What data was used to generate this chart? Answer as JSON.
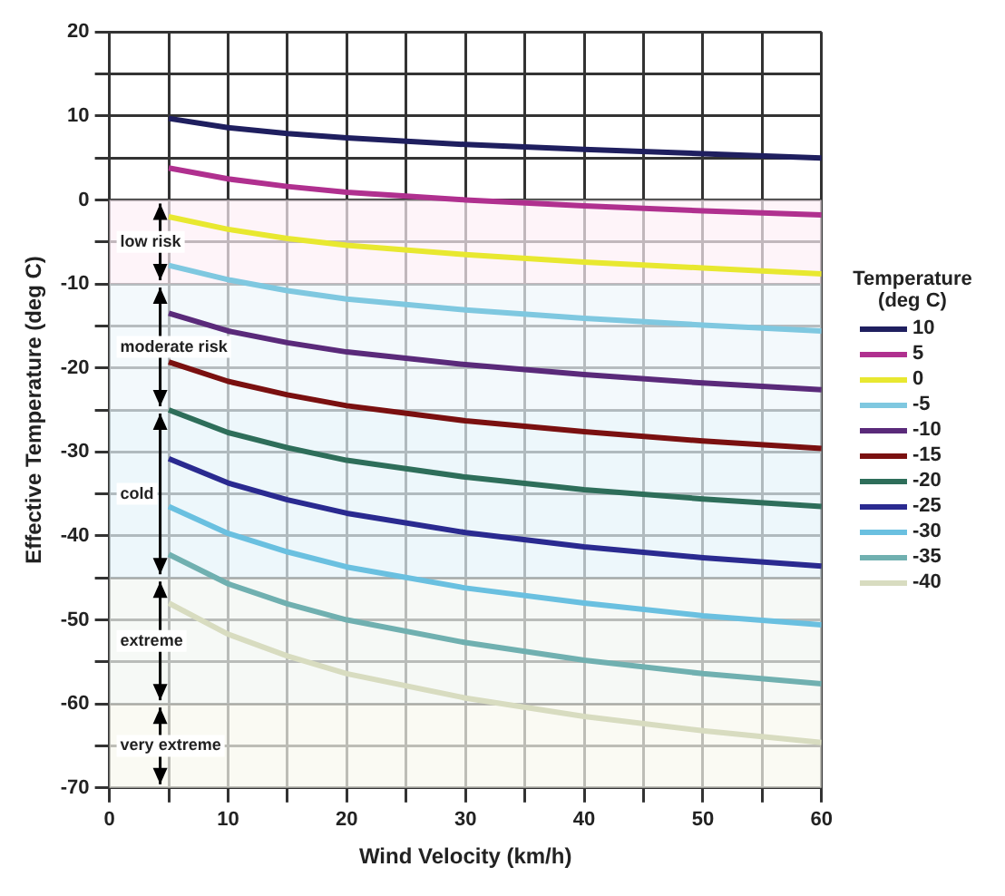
{
  "chart_data": {
    "type": "line",
    "xlabel": "Wind Velocity (km/h)",
    "ylabel": "Effective Temperature (deg C)",
    "legend_title": "Temperature (deg C)",
    "x": [
      5,
      10,
      15,
      20,
      30,
      40,
      50,
      60
    ],
    "xlim": [
      0,
      60
    ],
    "xticks": [
      0,
      {
        "value": 5,
        "label": null
      },
      10,
      {
        "value": 15,
        "label": null
      },
      20,
      {
        "value": 25,
        "label": null
      },
      30,
      {
        "value": 35,
        "label": null
      },
      40,
      {
        "value": 45,
        "label": null
      },
      50,
      {
        "value": 55,
        "label": null
      },
      60
    ],
    "ylim": [
      -70,
      20
    ],
    "yticks": [
      -70,
      {
        "value": -65,
        "label": null
      },
      -60,
      {
        "value": -55,
        "label": null
      },
      -50,
      {
        "value": -45,
        "label": null
      },
      -40,
      {
        "value": -35,
        "label": null
      },
      -30,
      {
        "value": -25,
        "label": null
      },
      -20,
      {
        "value": -15,
        "label": null
      },
      -10,
      {
        "value": -5,
        "label": null
      },
      0,
      {
        "value": 5,
        "label": null
      },
      10,
      {
        "value": 15,
        "label": null
      },
      20
    ],
    "grid": true,
    "legend": "right",
    "marker": "none",
    "line_style": "solid",
    "series": [
      {
        "name": "10",
        "color": "#1f1f5f",
        "values": [
          9.7,
          8.6,
          7.9,
          7.4,
          6.6,
          6.0,
          5.5,
          5.0
        ]
      },
      {
        "name": "5",
        "color": "#b0308f",
        "values": [
          3.8,
          2.5,
          1.6,
          0.9,
          0,
          -0.7,
          -1.3,
          -1.8
        ]
      },
      {
        "name": "0",
        "color": "#e8e830",
        "values": [
          -2,
          -3.5,
          -4.6,
          -5.4,
          -6.5,
          -7.4,
          -8.1,
          -8.8
        ]
      },
      {
        "name": "-5",
        "color": "#7fc8e0",
        "values": [
          -7.8,
          -9.5,
          -10.8,
          -11.8,
          -13.1,
          -14.1,
          -14.9,
          -15.6
        ]
      },
      {
        "name": "-10",
        "color": "#5a2a7a",
        "values": [
          -13.5,
          -15.6,
          -17,
          -18.1,
          -19.6,
          -20.8,
          -21.8,
          -22.6
        ]
      },
      {
        "name": "-15",
        "color": "#7a1010",
        "values": [
          -19.3,
          -21.6,
          -23.2,
          -24.5,
          -26.3,
          -27.6,
          -28.7,
          -29.6
        ]
      },
      {
        "name": "-20",
        "color": "#2e6e5a",
        "values": [
          -25,
          -27.7,
          -29.5,
          -31,
          -33,
          -34.5,
          -35.6,
          -36.5
        ]
      },
      {
        "name": "-25",
        "color": "#2a2a90",
        "values": [
          -30.8,
          -33.7,
          -35.7,
          -37.3,
          -39.6,
          -41.3,
          -42.6,
          -43.6
        ]
      },
      {
        "name": "-30",
        "color": "#6ac0e0",
        "values": [
          -36.5,
          -39.7,
          -41.9,
          -43.7,
          -46.2,
          -48,
          -49.5,
          -50.6
        ]
      },
      {
        "name": "-35",
        "color": "#70b0b0",
        "values": [
          -42.2,
          -45.7,
          -48.1,
          -50,
          -52.7,
          -54.8,
          -56.4,
          -57.6
        ]
      },
      {
        "name": "-40",
        "color": "#d8dcc0",
        "values": [
          -48,
          -51.7,
          -54.3,
          -56.4,
          -59.3,
          -61.5,
          -63.2,
          -64.6
        ]
      }
    ],
    "bands": [
      {
        "axis": "y",
        "from": 0,
        "to": -10,
        "label": "low risk",
        "color": "#fdf0f6"
      },
      {
        "axis": "y",
        "from": -10,
        "to": -25,
        "label": "moderate risk",
        "color": "#eef7fb"
      },
      {
        "axis": "y",
        "from": -25,
        "to": -45,
        "label": "cold",
        "color": "#e6f4fa"
      },
      {
        "axis": "y",
        "from": -45,
        "to": -60,
        "label": "extreme",
        "color": "#f2f7f2"
      },
      {
        "axis": "y",
        "from": -60,
        "to": -70,
        "label": "very extreme",
        "color": "#f8f8ee"
      }
    ]
  }
}
